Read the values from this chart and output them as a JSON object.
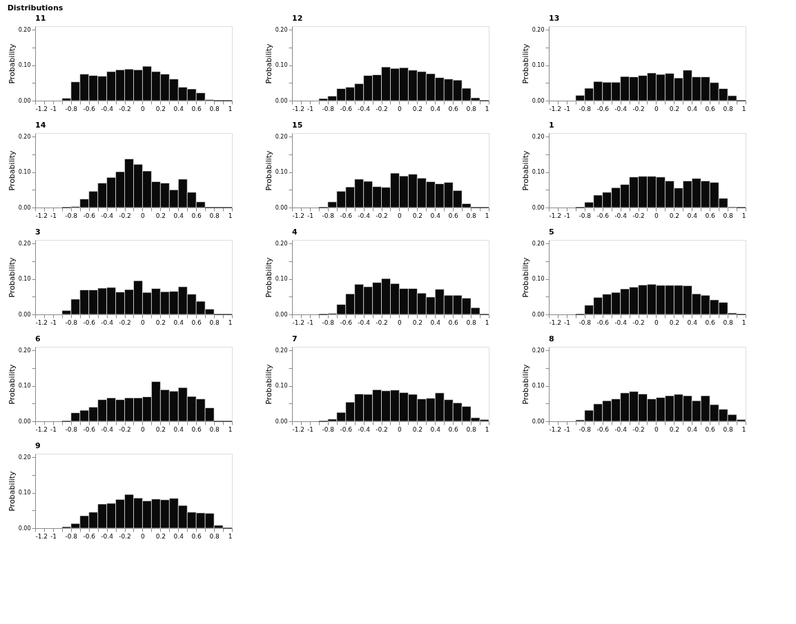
{
  "chart_data": [
    {
      "type": "histogram",
      "title": "11",
      "annotations": [
        "Distributions"
      ],
      "ylabel": "Probability",
      "color": "#0a0a0a",
      "grid": false,
      "xlim": [
        -1.2,
        1
      ],
      "ylim": [
        0,
        0.21
      ],
      "bins": [
        -0.9,
        -0.8,
        -0.7,
        -0.6,
        -0.5,
        -0.4,
        -0.3,
        -0.2,
        -0.1,
        0,
        0.1,
        0.2,
        0.3,
        0.4,
        0.5,
        0.6,
        0.7,
        0.8,
        0.9,
        1.0
      ],
      "values": [
        0.007,
        0.053,
        0.075,
        0.071,
        0.069,
        0.082,
        0.087,
        0.089,
        0.087,
        0.097,
        0.082,
        0.075,
        0.061,
        0.038,
        0.033,
        0.022,
        0.003,
        0,
        0
      ],
      "xticks": [
        {
          "value": -1.2,
          "label": "-1.2"
        },
        {
          "value": -1.1,
          "label": null
        },
        {
          "value": -1,
          "label": "-1"
        },
        {
          "value": -0.9,
          "label": null
        },
        {
          "value": -0.8,
          "label": "-0.8"
        },
        {
          "value": -0.7,
          "label": null
        },
        {
          "value": -0.6,
          "label": "-0.6"
        },
        {
          "value": -0.5,
          "label": null
        },
        {
          "value": -0.4,
          "label": "-0.4"
        },
        {
          "value": -0.3,
          "label": null
        },
        {
          "value": -0.2,
          "label": "-0.2"
        },
        {
          "value": -0.1,
          "label": null
        },
        {
          "value": 0,
          "label": "0"
        },
        {
          "value": 0.1,
          "label": null
        },
        {
          "value": 0.2,
          "label": "0.2"
        },
        {
          "value": 0.3,
          "label": null
        },
        {
          "value": 0.4,
          "label": "0.4"
        },
        {
          "value": 0.5,
          "label": null
        },
        {
          "value": 0.6,
          "label": "0.6"
        },
        {
          "value": 0.7,
          "label": null
        },
        {
          "value": 0.8,
          "label": "0.8"
        },
        {
          "value": 0.9,
          "label": null
        },
        {
          "value": 1,
          "label": "1"
        }
      ],
      "yticks": [
        {
          "value": 0,
          "label": "0.00"
        },
        {
          "value": 0.05,
          "label": null
        },
        {
          "value": 0.1,
          "label": "0.10"
        },
        {
          "value": 0.15,
          "label": null
        },
        {
          "value": 0.2,
          "label": "0.20"
        }
      ]
    },
    {
      "type": "histogram",
      "title": "12",
      "ylabel": "Probability",
      "color": "#0a0a0a",
      "grid": false,
      "xlim": [
        -1.2,
        1
      ],
      "ylim": [
        0,
        0.21
      ],
      "bins": [
        -0.9,
        -0.8,
        -0.7,
        -0.6,
        -0.5,
        -0.4,
        -0.3,
        -0.2,
        -0.1,
        0,
        0.1,
        0.2,
        0.3,
        0.4,
        0.5,
        0.6,
        0.7,
        0.8,
        0.9,
        1.0
      ],
      "values": [
        0.006,
        0.013,
        0.034,
        0.038,
        0.048,
        0.071,
        0.073,
        0.095,
        0.091,
        0.093,
        0.086,
        0.082,
        0.076,
        0.065,
        0.061,
        0.058,
        0.035,
        0.008,
        0
      ],
      "xticks": [
        {
          "value": -1.2,
          "label": "-1.2"
        },
        {
          "value": -1.1,
          "label": null
        },
        {
          "value": -1,
          "label": "-1"
        },
        {
          "value": -0.9,
          "label": null
        },
        {
          "value": -0.8,
          "label": "-0.8"
        },
        {
          "value": -0.7,
          "label": null
        },
        {
          "value": -0.6,
          "label": "-0.6"
        },
        {
          "value": -0.5,
          "label": null
        },
        {
          "value": -0.4,
          "label": "-0.4"
        },
        {
          "value": -0.3,
          "label": null
        },
        {
          "value": -0.2,
          "label": "-0.2"
        },
        {
          "value": -0.1,
          "label": null
        },
        {
          "value": 0,
          "label": "0"
        },
        {
          "value": 0.1,
          "label": null
        },
        {
          "value": 0.2,
          "label": "0.2"
        },
        {
          "value": 0.3,
          "label": null
        },
        {
          "value": 0.4,
          "label": "0.4"
        },
        {
          "value": 0.5,
          "label": null
        },
        {
          "value": 0.6,
          "label": "0.6"
        },
        {
          "value": 0.7,
          "label": null
        },
        {
          "value": 0.8,
          "label": "0.8"
        },
        {
          "value": 0.9,
          "label": null
        },
        {
          "value": 1,
          "label": "1"
        }
      ],
      "yticks": [
        {
          "value": 0,
          "label": "0.00"
        },
        {
          "value": 0.05,
          "label": null
        },
        {
          "value": 0.1,
          "label": "0.10"
        },
        {
          "value": 0.15,
          "label": null
        },
        {
          "value": 0.2,
          "label": "0.20"
        }
      ]
    },
    {
      "type": "histogram",
      "title": "13",
      "ylabel": "Probability",
      "color": "#0a0a0a",
      "grid": false,
      "xlim": [
        -1.2,
        1
      ],
      "ylim": [
        0,
        0.21
      ],
      "bins": [
        -0.9,
        -0.8,
        -0.7,
        -0.6,
        -0.5,
        -0.4,
        -0.3,
        -0.2,
        -0.1,
        0,
        0.1,
        0.2,
        0.3,
        0.4,
        0.5,
        0.6,
        0.7,
        0.8,
        0.9,
        1.0
      ],
      "values": [
        0.015,
        0.035,
        0.054,
        0.052,
        0.052,
        0.068,
        0.067,
        0.071,
        0.078,
        0.074,
        0.077,
        0.064,
        0.086,
        0.067,
        0.067,
        0.051,
        0.034,
        0.014,
        0
      ],
      "xticks": [
        {
          "value": -1.2,
          "label": "-1.2"
        },
        {
          "value": -1.1,
          "label": null
        },
        {
          "value": -1,
          "label": "-1"
        },
        {
          "value": -0.9,
          "label": null
        },
        {
          "value": -0.8,
          "label": "-0.8"
        },
        {
          "value": -0.7,
          "label": null
        },
        {
          "value": -0.6,
          "label": "-0.6"
        },
        {
          "value": -0.5,
          "label": null
        },
        {
          "value": -0.4,
          "label": "-0.4"
        },
        {
          "value": -0.3,
          "label": null
        },
        {
          "value": -0.2,
          "label": "-0.2"
        },
        {
          "value": -0.1,
          "label": null
        },
        {
          "value": 0,
          "label": "0"
        },
        {
          "value": 0.1,
          "label": null
        },
        {
          "value": 0.2,
          "label": "0.2"
        },
        {
          "value": 0.3,
          "label": null
        },
        {
          "value": 0.4,
          "label": "0.4"
        },
        {
          "value": 0.5,
          "label": null
        },
        {
          "value": 0.6,
          "label": "0.6"
        },
        {
          "value": 0.7,
          "label": null
        },
        {
          "value": 0.8,
          "label": "0.8"
        },
        {
          "value": 0.9,
          "label": null
        },
        {
          "value": 1,
          "label": "1"
        }
      ],
      "yticks": [
        {
          "value": 0,
          "label": "0.00"
        },
        {
          "value": 0.05,
          "label": null
        },
        {
          "value": 0.1,
          "label": "0.10"
        },
        {
          "value": 0.15,
          "label": null
        },
        {
          "value": 0.2,
          "label": "0.20"
        }
      ]
    },
    {
      "type": "histogram",
      "title": "14",
      "ylabel": "Probability",
      "color": "#0a0a0a",
      "grid": false,
      "xlim": [
        -1.2,
        1
      ],
      "ylim": [
        0,
        0.21
      ],
      "bins": [
        -0.9,
        -0.8,
        -0.7,
        -0.6,
        -0.5,
        -0.4,
        -0.3,
        -0.2,
        -0.1,
        0,
        0.1,
        0.2,
        0.3,
        0.4,
        0.5,
        0.6,
        0.7,
        0.8,
        0.9,
        1.0
      ],
      "values": [
        0,
        0.003,
        0.024,
        0.046,
        0.069,
        0.085,
        0.101,
        0.137,
        0.122,
        0.103,
        0.073,
        0.069,
        0.05,
        0.08,
        0.043,
        0.016,
        0,
        0,
        0
      ],
      "xticks": [
        {
          "value": -1.2,
          "label": "-1.2"
        },
        {
          "value": -1.1,
          "label": null
        },
        {
          "value": -1,
          "label": "-1"
        },
        {
          "value": -0.9,
          "label": null
        },
        {
          "value": -0.8,
          "label": "-0.8"
        },
        {
          "value": -0.7,
          "label": null
        },
        {
          "value": -0.6,
          "label": "-0.6"
        },
        {
          "value": -0.5,
          "label": null
        },
        {
          "value": -0.4,
          "label": "-0.4"
        },
        {
          "value": -0.3,
          "label": null
        },
        {
          "value": -0.2,
          "label": "-0.2"
        },
        {
          "value": -0.1,
          "label": null
        },
        {
          "value": 0,
          "label": "0"
        },
        {
          "value": 0.1,
          "label": null
        },
        {
          "value": 0.2,
          "label": "0.2"
        },
        {
          "value": 0.3,
          "label": null
        },
        {
          "value": 0.4,
          "label": "0.4"
        },
        {
          "value": 0.5,
          "label": null
        },
        {
          "value": 0.6,
          "label": "0.6"
        },
        {
          "value": 0.7,
          "label": null
        },
        {
          "value": 0.8,
          "label": "0.8"
        },
        {
          "value": 0.9,
          "label": null
        },
        {
          "value": 1,
          "label": "1"
        }
      ],
      "yticks": [
        {
          "value": 0,
          "label": "0.00"
        },
        {
          "value": 0.05,
          "label": null
        },
        {
          "value": 0.1,
          "label": "0.10"
        },
        {
          "value": 0.15,
          "label": null
        },
        {
          "value": 0.2,
          "label": "0.20"
        }
      ]
    },
    {
      "type": "histogram",
      "title": "15",
      "ylabel": "Probability",
      "color": "#0a0a0a",
      "grid": false,
      "xlim": [
        -1.2,
        1
      ],
      "ylim": [
        0,
        0.21
      ],
      "bins": [
        -0.9,
        -0.8,
        -0.7,
        -0.6,
        -0.5,
        -0.4,
        -0.3,
        -0.2,
        -0.1,
        0,
        0.1,
        0.2,
        0.3,
        0.4,
        0.5,
        0.6,
        0.7,
        0.8,
        0.9,
        1.0
      ],
      "values": [
        0,
        0.016,
        0.046,
        0.058,
        0.08,
        0.074,
        0.059,
        0.057,
        0.097,
        0.089,
        0.094,
        0.083,
        0.073,
        0.067,
        0.071,
        0.048,
        0.011,
        0,
        0
      ],
      "xticks": [
        {
          "value": -1.2,
          "label": "-1.2"
        },
        {
          "value": -1.1,
          "label": null
        },
        {
          "value": -1,
          "label": "-1"
        },
        {
          "value": -0.9,
          "label": null
        },
        {
          "value": -0.8,
          "label": "-0.8"
        },
        {
          "value": -0.7,
          "label": null
        },
        {
          "value": -0.6,
          "label": "-0.6"
        },
        {
          "value": -0.5,
          "label": null
        },
        {
          "value": -0.4,
          "label": "-0.4"
        },
        {
          "value": -0.3,
          "label": null
        },
        {
          "value": -0.2,
          "label": "-0.2"
        },
        {
          "value": -0.1,
          "label": null
        },
        {
          "value": 0,
          "label": "0"
        },
        {
          "value": 0.1,
          "label": null
        },
        {
          "value": 0.2,
          "label": "0.2"
        },
        {
          "value": 0.3,
          "label": null
        },
        {
          "value": 0.4,
          "label": "0.4"
        },
        {
          "value": 0.5,
          "label": null
        },
        {
          "value": 0.6,
          "label": "0.6"
        },
        {
          "value": 0.7,
          "label": null
        },
        {
          "value": 0.8,
          "label": "0.8"
        },
        {
          "value": 0.9,
          "label": null
        },
        {
          "value": 1,
          "label": "1"
        }
      ],
      "yticks": [
        {
          "value": 0,
          "label": "0.00"
        },
        {
          "value": 0.05,
          "label": null
        },
        {
          "value": 0.1,
          "label": "0.10"
        },
        {
          "value": 0.15,
          "label": null
        },
        {
          "value": 0.2,
          "label": "0.20"
        }
      ]
    },
    {
      "type": "histogram",
      "title": "1",
      "ylabel": "Probability",
      "color": "#0a0a0a",
      "grid": false,
      "xlim": [
        -1.2,
        1
      ],
      "ylim": [
        0,
        0.21
      ],
      "bins": [
        -0.9,
        -0.8,
        -0.7,
        -0.6,
        -0.5,
        -0.4,
        -0.3,
        -0.2,
        -0.1,
        0,
        0.1,
        0.2,
        0.3,
        0.4,
        0.5,
        0.6,
        0.7,
        0.8,
        0.9,
        1.0
      ],
      "values": [
        0,
        0.015,
        0.035,
        0.043,
        0.056,
        0.065,
        0.086,
        0.088,
        0.088,
        0.086,
        0.075,
        0.055,
        0.075,
        0.082,
        0.075,
        0.071,
        0.026,
        0.002,
        0
      ],
      "xticks": [
        {
          "value": -1.2,
          "label": "-1.2"
        },
        {
          "value": -1.1,
          "label": null
        },
        {
          "value": -1,
          "label": "-1"
        },
        {
          "value": -0.9,
          "label": null
        },
        {
          "value": -0.8,
          "label": "-0.8"
        },
        {
          "value": -0.7,
          "label": null
        },
        {
          "value": -0.6,
          "label": "-0.6"
        },
        {
          "value": -0.5,
          "label": null
        },
        {
          "value": -0.4,
          "label": "-0.4"
        },
        {
          "value": -0.3,
          "label": null
        },
        {
          "value": -0.2,
          "label": "-0.2"
        },
        {
          "value": -0.1,
          "label": null
        },
        {
          "value": 0,
          "label": "0"
        },
        {
          "value": 0.1,
          "label": null
        },
        {
          "value": 0.2,
          "label": "0.2"
        },
        {
          "value": 0.3,
          "label": null
        },
        {
          "value": 0.4,
          "label": "0.4"
        },
        {
          "value": 0.5,
          "label": null
        },
        {
          "value": 0.6,
          "label": "0.6"
        },
        {
          "value": 0.7,
          "label": null
        },
        {
          "value": 0.8,
          "label": "0.8"
        },
        {
          "value": 0.9,
          "label": null
        },
        {
          "value": 1,
          "label": "1"
        }
      ],
      "yticks": [
        {
          "value": 0,
          "label": "0.00"
        },
        {
          "value": 0.05,
          "label": null
        },
        {
          "value": 0.1,
          "label": "0.10"
        },
        {
          "value": 0.15,
          "label": null
        },
        {
          "value": 0.2,
          "label": "0.20"
        }
      ]
    },
    {
      "type": "histogram",
      "title": "3",
      "ylabel": "Probability",
      "color": "#0a0a0a",
      "grid": false,
      "xlim": [
        -1.2,
        1
      ],
      "ylim": [
        0,
        0.21
      ],
      "bins": [
        -0.9,
        -0.8,
        -0.7,
        -0.6,
        -0.5,
        -0.4,
        -0.3,
        -0.2,
        -0.1,
        0,
        0.1,
        0.2,
        0.3,
        0.4,
        0.5,
        0.6,
        0.7,
        0.8,
        0.9,
        1.0
      ],
      "values": [
        0.011,
        0.043,
        0.069,
        0.069,
        0.074,
        0.076,
        0.063,
        0.07,
        0.095,
        0.062,
        0.073,
        0.064,
        0.065,
        0.078,
        0.057,
        0.037,
        0.015,
        0,
        0
      ],
      "xticks": [
        {
          "value": -1.2,
          "label": "-1.2"
        },
        {
          "value": -1.1,
          "label": null
        },
        {
          "value": -1,
          "label": "-1"
        },
        {
          "value": -0.9,
          "label": null
        },
        {
          "value": -0.8,
          "label": "-0.8"
        },
        {
          "value": -0.7,
          "label": null
        },
        {
          "value": -0.6,
          "label": "-0.6"
        },
        {
          "value": -0.5,
          "label": null
        },
        {
          "value": -0.4,
          "label": "-0.4"
        },
        {
          "value": -0.3,
          "label": null
        },
        {
          "value": -0.2,
          "label": "-0.2"
        },
        {
          "value": -0.1,
          "label": null
        },
        {
          "value": 0,
          "label": "0"
        },
        {
          "value": 0.1,
          "label": null
        },
        {
          "value": 0.2,
          "label": "0.2"
        },
        {
          "value": 0.3,
          "label": null
        },
        {
          "value": 0.4,
          "label": "0.4"
        },
        {
          "value": 0.5,
          "label": null
        },
        {
          "value": 0.6,
          "label": "0.6"
        },
        {
          "value": 0.7,
          "label": null
        },
        {
          "value": 0.8,
          "label": "0.8"
        },
        {
          "value": 0.9,
          "label": null
        },
        {
          "value": 1,
          "label": "1"
        }
      ],
      "yticks": [
        {
          "value": 0,
          "label": "0.00"
        },
        {
          "value": 0.05,
          "label": null
        },
        {
          "value": 0.1,
          "label": "0.10"
        },
        {
          "value": 0.15,
          "label": null
        },
        {
          "value": 0.2,
          "label": "0.20"
        }
      ]
    },
    {
      "type": "histogram",
      "title": "4",
      "ylabel": "Probability",
      "color": "#0a0a0a",
      "grid": false,
      "xlim": [
        -1.2,
        1
      ],
      "ylim": [
        0,
        0.21
      ],
      "bins": [
        -0.9,
        -0.8,
        -0.7,
        -0.6,
        -0.5,
        -0.4,
        -0.3,
        -0.2,
        -0.1,
        0,
        0.1,
        0.2,
        0.3,
        0.4,
        0.5,
        0.6,
        0.7,
        0.8,
        0.9,
        1.0
      ],
      "values": [
        0,
        0.003,
        0.028,
        0.058,
        0.085,
        0.078,
        0.09,
        0.101,
        0.087,
        0.073,
        0.073,
        0.06,
        0.049,
        0.071,
        0.054,
        0.054,
        0.046,
        0.019,
        0
      ],
      "xticks": [
        {
          "value": -1.2,
          "label": "-1.2"
        },
        {
          "value": -1.1,
          "label": null
        },
        {
          "value": -1,
          "label": "-1"
        },
        {
          "value": -0.9,
          "label": null
        },
        {
          "value": -0.8,
          "label": "-0.8"
        },
        {
          "value": -0.7,
          "label": null
        },
        {
          "value": -0.6,
          "label": "-0.6"
        },
        {
          "value": -0.5,
          "label": null
        },
        {
          "value": -0.4,
          "label": "-0.4"
        },
        {
          "value": -0.3,
          "label": null
        },
        {
          "value": -0.2,
          "label": "-0.2"
        },
        {
          "value": -0.1,
          "label": null
        },
        {
          "value": 0,
          "label": "0"
        },
        {
          "value": 0.1,
          "label": null
        },
        {
          "value": 0.2,
          "label": "0.2"
        },
        {
          "value": 0.3,
          "label": null
        },
        {
          "value": 0.4,
          "label": "0.4"
        },
        {
          "value": 0.5,
          "label": null
        },
        {
          "value": 0.6,
          "label": "0.6"
        },
        {
          "value": 0.7,
          "label": null
        },
        {
          "value": 0.8,
          "label": "0.8"
        },
        {
          "value": 0.9,
          "label": null
        },
        {
          "value": 1,
          "label": "1"
        }
      ],
      "yticks": [
        {
          "value": 0,
          "label": "0.00"
        },
        {
          "value": 0.05,
          "label": null
        },
        {
          "value": 0.1,
          "label": "0.10"
        },
        {
          "value": 0.15,
          "label": null
        },
        {
          "value": 0.2,
          "label": "0.20"
        }
      ]
    },
    {
      "type": "histogram",
      "title": "5",
      "ylabel": "Probability",
      "color": "#0a0a0a",
      "grid": false,
      "xlim": [
        -1.2,
        1
      ],
      "ylim": [
        0,
        0.21
      ],
      "bins": [
        -0.9,
        -0.8,
        -0.7,
        -0.6,
        -0.5,
        -0.4,
        -0.3,
        -0.2,
        -0.1,
        0,
        0.1,
        0.2,
        0.3,
        0.4,
        0.5,
        0.6,
        0.7,
        0.8,
        0.9,
        1.0
      ],
      "values": [
        0,
        0.026,
        0.048,
        0.057,
        0.062,
        0.072,
        0.077,
        0.083,
        0.085,
        0.082,
        0.082,
        0.082,
        0.081,
        0.058,
        0.054,
        0.041,
        0.034,
        0.004,
        0
      ],
      "xticks": [
        {
          "value": -1.2,
          "label": "-1.2"
        },
        {
          "value": -1.1,
          "label": null
        },
        {
          "value": -1,
          "label": "-1"
        },
        {
          "value": -0.9,
          "label": null
        },
        {
          "value": -0.8,
          "label": "-0.8"
        },
        {
          "value": -0.7,
          "label": null
        },
        {
          "value": -0.6,
          "label": "-0.6"
        },
        {
          "value": -0.5,
          "label": null
        },
        {
          "value": -0.4,
          "label": "-0.4"
        },
        {
          "value": -0.3,
          "label": null
        },
        {
          "value": -0.2,
          "label": "-0.2"
        },
        {
          "value": -0.1,
          "label": null
        },
        {
          "value": 0,
          "label": "0"
        },
        {
          "value": 0.1,
          "label": null
        },
        {
          "value": 0.2,
          "label": "0.2"
        },
        {
          "value": 0.3,
          "label": null
        },
        {
          "value": 0.4,
          "label": "0.4"
        },
        {
          "value": 0.5,
          "label": null
        },
        {
          "value": 0.6,
          "label": "0.6"
        },
        {
          "value": 0.7,
          "label": null
        },
        {
          "value": 0.8,
          "label": "0.8"
        },
        {
          "value": 0.9,
          "label": null
        },
        {
          "value": 1,
          "label": "1"
        }
      ],
      "yticks": [
        {
          "value": 0,
          "label": "0.00"
        },
        {
          "value": 0.05,
          "label": null
        },
        {
          "value": 0.1,
          "label": "0.10"
        },
        {
          "value": 0.15,
          "label": null
        },
        {
          "value": 0.2,
          "label": "0.20"
        }
      ]
    },
    {
      "type": "histogram",
      "title": "6",
      "ylabel": "Probability",
      "color": "#0a0a0a",
      "grid": false,
      "xlim": [
        -1.2,
        1
      ],
      "ylim": [
        0,
        0.21
      ],
      "bins": [
        -0.9,
        -0.8,
        -0.7,
        -0.6,
        -0.5,
        -0.4,
        -0.3,
        -0.2,
        -0.1,
        0,
        0.1,
        0.2,
        0.3,
        0.4,
        0.5,
        0.6,
        0.7,
        0.8,
        0.9,
        1.0
      ],
      "values": [
        0,
        0.024,
        0.031,
        0.04,
        0.061,
        0.066,
        0.061,
        0.066,
        0.066,
        0.069,
        0.112,
        0.089,
        0.085,
        0.095,
        0.07,
        0.063,
        0.038,
        0,
        0
      ],
      "xticks": [
        {
          "value": -1.2,
          "label": "-1.2"
        },
        {
          "value": -1.1,
          "label": null
        },
        {
          "value": -1,
          "label": "-1"
        },
        {
          "value": -0.9,
          "label": null
        },
        {
          "value": -0.8,
          "label": "-0.8"
        },
        {
          "value": -0.7,
          "label": null
        },
        {
          "value": -0.6,
          "label": "-0.6"
        },
        {
          "value": -0.5,
          "label": null
        },
        {
          "value": -0.4,
          "label": "-0.4"
        },
        {
          "value": -0.3,
          "label": null
        },
        {
          "value": -0.2,
          "label": "-0.2"
        },
        {
          "value": -0.1,
          "label": null
        },
        {
          "value": 0,
          "label": "0"
        },
        {
          "value": 0.1,
          "label": null
        },
        {
          "value": 0.2,
          "label": "0.2"
        },
        {
          "value": 0.3,
          "label": null
        },
        {
          "value": 0.4,
          "label": "0.4"
        },
        {
          "value": 0.5,
          "label": null
        },
        {
          "value": 0.6,
          "label": "0.6"
        },
        {
          "value": 0.7,
          "label": null
        },
        {
          "value": 0.8,
          "label": "0.8"
        },
        {
          "value": 0.9,
          "label": null
        },
        {
          "value": 1,
          "label": "1"
        }
      ],
      "yticks": [
        {
          "value": 0,
          "label": "0.00"
        },
        {
          "value": 0.05,
          "label": null
        },
        {
          "value": 0.1,
          "label": "0.10"
        },
        {
          "value": 0.15,
          "label": null
        },
        {
          "value": 0.2,
          "label": "0.20"
        }
      ]
    },
    {
      "type": "histogram",
      "title": "7",
      "ylabel": "Probability",
      "color": "#0a0a0a",
      "grid": false,
      "xlim": [
        -1.2,
        1
      ],
      "ylim": [
        0,
        0.21
      ],
      "bins": [
        -0.9,
        -0.8,
        -0.7,
        -0.6,
        -0.5,
        -0.4,
        -0.3,
        -0.2,
        -0.1,
        0,
        0.1,
        0.2,
        0.3,
        0.4,
        0.5,
        0.6,
        0.7,
        0.8,
        0.9,
        1.0
      ],
      "values": [
        0,
        0.006,
        0.025,
        0.054,
        0.077,
        0.076,
        0.089,
        0.086,
        0.088,
        0.081,
        0.076,
        0.063,
        0.065,
        0.08,
        0.061,
        0.052,
        0.042,
        0.01,
        0.005
      ],
      "xticks": [
        {
          "value": -1.2,
          "label": "-1.2"
        },
        {
          "value": -1.1,
          "label": null
        },
        {
          "value": -1,
          "label": "-1"
        },
        {
          "value": -0.9,
          "label": null
        },
        {
          "value": -0.8,
          "label": "-0.8"
        },
        {
          "value": -0.7,
          "label": null
        },
        {
          "value": -0.6,
          "label": "-0.6"
        },
        {
          "value": -0.5,
          "label": null
        },
        {
          "value": -0.4,
          "label": "-0.4"
        },
        {
          "value": -0.3,
          "label": null
        },
        {
          "value": -0.2,
          "label": "-0.2"
        },
        {
          "value": -0.1,
          "label": null
        },
        {
          "value": 0,
          "label": "0"
        },
        {
          "value": 0.1,
          "label": null
        },
        {
          "value": 0.2,
          "label": "0.2"
        },
        {
          "value": 0.3,
          "label": null
        },
        {
          "value": 0.4,
          "label": "0.4"
        },
        {
          "value": 0.5,
          "label": null
        },
        {
          "value": 0.6,
          "label": "0.6"
        },
        {
          "value": 0.7,
          "label": null
        },
        {
          "value": 0.8,
          "label": "0.8"
        },
        {
          "value": 0.9,
          "label": null
        },
        {
          "value": 1,
          "label": "1"
        }
      ],
      "yticks": [
        {
          "value": 0,
          "label": "0.00"
        },
        {
          "value": 0.05,
          "label": null
        },
        {
          "value": 0.1,
          "label": "0.10"
        },
        {
          "value": 0.15,
          "label": null
        },
        {
          "value": 0.2,
          "label": "0.20"
        }
      ]
    },
    {
      "type": "histogram",
      "title": "8",
      "ylabel": "Probability",
      "color": "#0a0a0a",
      "grid": false,
      "xlim": [
        -1.2,
        1
      ],
      "ylim": [
        0,
        0.21
      ],
      "bins": [
        -0.9,
        -0.8,
        -0.7,
        -0.6,
        -0.5,
        -0.4,
        -0.3,
        -0.2,
        -0.1,
        0,
        0.1,
        0.2,
        0.3,
        0.4,
        0.5,
        0.6,
        0.7,
        0.8,
        0.9,
        1.0
      ],
      "values": [
        0.004,
        0.031,
        0.049,
        0.058,
        0.063,
        0.08,
        0.084,
        0.077,
        0.063,
        0.067,
        0.072,
        0.076,
        0.072,
        0.058,
        0.072,
        0.047,
        0.034,
        0.019,
        0.005
      ],
      "xticks": [
        {
          "value": -1.2,
          "label": "-1.2"
        },
        {
          "value": -1.1,
          "label": null
        },
        {
          "value": -1,
          "label": "-1"
        },
        {
          "value": -0.9,
          "label": null
        },
        {
          "value": -0.8,
          "label": "-0.8"
        },
        {
          "value": -0.7,
          "label": null
        },
        {
          "value": -0.6,
          "label": "-0.6"
        },
        {
          "value": -0.5,
          "label": null
        },
        {
          "value": -0.4,
          "label": "-0.4"
        },
        {
          "value": -0.3,
          "label": null
        },
        {
          "value": -0.2,
          "label": "-0.2"
        },
        {
          "value": -0.1,
          "label": null
        },
        {
          "value": 0,
          "label": "0"
        },
        {
          "value": 0.1,
          "label": null
        },
        {
          "value": 0.2,
          "label": "0.2"
        },
        {
          "value": 0.3,
          "label": null
        },
        {
          "value": 0.4,
          "label": "0.4"
        },
        {
          "value": 0.5,
          "label": null
        },
        {
          "value": 0.6,
          "label": "0.6"
        },
        {
          "value": 0.7,
          "label": null
        },
        {
          "value": 0.8,
          "label": "0.8"
        },
        {
          "value": 0.9,
          "label": null
        },
        {
          "value": 1,
          "label": "1"
        }
      ],
      "yticks": [
        {
          "value": 0,
          "label": "0.00"
        },
        {
          "value": 0.05,
          "label": null
        },
        {
          "value": 0.1,
          "label": "0.10"
        },
        {
          "value": 0.15,
          "label": null
        },
        {
          "value": 0.2,
          "label": "0.20"
        }
      ]
    },
    {
      "type": "histogram",
      "title": "9",
      "ylabel": "Probability",
      "color": "#0a0a0a",
      "grid": false,
      "xlim": [
        -1.2,
        1
      ],
      "ylim": [
        0,
        0.21
      ],
      "bins": [
        -0.9,
        -0.8,
        -0.7,
        -0.6,
        -0.5,
        -0.4,
        -0.3,
        -0.2,
        -0.1,
        0,
        0.1,
        0.2,
        0.3,
        0.4,
        0.5,
        0.6,
        0.7,
        0.8,
        0.9,
        1.0
      ],
      "values": [
        0.004,
        0.013,
        0.035,
        0.045,
        0.068,
        0.07,
        0.081,
        0.095,
        0.085,
        0.077,
        0.082,
        0.08,
        0.084,
        0.064,
        0.045,
        0.043,
        0.042,
        0.008,
        0
      ],
      "xticks": [
        {
          "value": -1.2,
          "label": "-1.2"
        },
        {
          "value": -1.1,
          "label": null
        },
        {
          "value": -1,
          "label": "-1"
        },
        {
          "value": -0.9,
          "label": null
        },
        {
          "value": -0.8,
          "label": "-0.8"
        },
        {
          "value": -0.7,
          "label": null
        },
        {
          "value": -0.6,
          "label": "-0.6"
        },
        {
          "value": -0.5,
          "label": null
        },
        {
          "value": -0.4,
          "label": "-0.4"
        },
        {
          "value": -0.3,
          "label": null
        },
        {
          "value": -0.2,
          "label": "-0.2"
        },
        {
          "value": -0.1,
          "label": null
        },
        {
          "value": 0,
          "label": "0"
        },
        {
          "value": 0.1,
          "label": null
        },
        {
          "value": 0.2,
          "label": "0.2"
        },
        {
          "value": 0.3,
          "label": null
        },
        {
          "value": 0.4,
          "label": "0.4"
        },
        {
          "value": 0.5,
          "label": null
        },
        {
          "value": 0.6,
          "label": "0.6"
        },
        {
          "value": 0.7,
          "label": null
        },
        {
          "value": 0.8,
          "label": "0.8"
        },
        {
          "value": 0.9,
          "label": null
        },
        {
          "value": 1,
          "label": "1"
        }
      ],
      "yticks": [
        {
          "value": 0,
          "label": "0.00"
        },
        {
          "value": 0.05,
          "label": null
        },
        {
          "value": 0.1,
          "label": "0.10"
        },
        {
          "value": 0.15,
          "label": null
        },
        {
          "value": 0.2,
          "label": "0.20"
        }
      ]
    }
  ]
}
